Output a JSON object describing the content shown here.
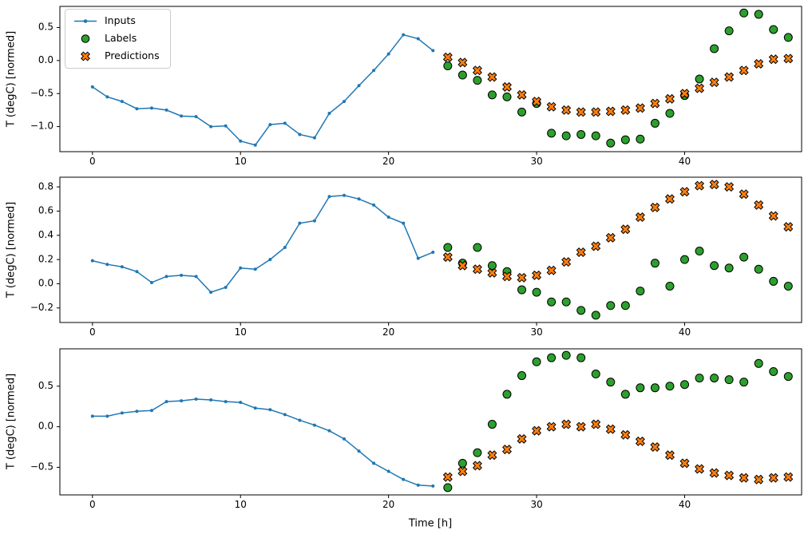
{
  "figure": {
    "background": "#ffffff",
    "xlabel": "Time [h]",
    "ylabel": "T (degC) [normed]",
    "legend": {
      "position": "upper-left",
      "entries": [
        {
          "label": "Inputs",
          "marker": "line-dot",
          "color": "#1f77b4"
        },
        {
          "label": "Labels",
          "marker": "circle",
          "color": "#2ca02c"
        },
        {
          "label": "Predictions",
          "marker": "X",
          "color": "#ff7f0e"
        }
      ]
    }
  },
  "chart_data": [
    {
      "type": "line+scatter",
      "subplot": 1,
      "ylabel": "T (degC) [normed]",
      "xlim": [
        -2.2,
        47.9
      ],
      "ylim": [
        -1.38,
        0.82
      ],
      "xticks": [
        0,
        10,
        20,
        30,
        40
      ],
      "yticks": [
        0.5,
        0.0,
        -0.5,
        -1.0
      ],
      "series": [
        {
          "name": "Inputs",
          "marker": "line-dot",
          "color": "#1f77b4",
          "x": [
            0,
            1,
            2,
            3,
            4,
            5,
            6,
            7,
            8,
            9,
            10,
            11,
            12,
            13,
            14,
            15,
            16,
            17,
            18,
            19,
            20,
            21,
            22,
            23
          ],
          "y": [
            -0.4,
            -0.55,
            -0.62,
            -0.73,
            -0.72,
            -0.75,
            -0.84,
            -0.85,
            -1.0,
            -0.99,
            -1.22,
            -1.28,
            -0.97,
            -0.95,
            -1.12,
            -1.17,
            -0.8,
            -0.62,
            -0.38,
            -0.15,
            0.1,
            0.39,
            0.33,
            0.15
          ]
        },
        {
          "name": "Labels",
          "marker": "circle",
          "color": "#2ca02c",
          "x": [
            24,
            25,
            26,
            27,
            28,
            29,
            30,
            31,
            32,
            33,
            34,
            35,
            36,
            37,
            38,
            39,
            40,
            41,
            42,
            43,
            44,
            45,
            46,
            47
          ],
          "y": [
            -0.08,
            -0.22,
            -0.3,
            -0.52,
            -0.55,
            -0.78,
            -0.65,
            -1.1,
            -1.14,
            -1.12,
            -1.14,
            -1.25,
            -1.2,
            -1.19,
            -0.95,
            -0.8,
            -0.53,
            -0.28,
            0.18,
            0.45,
            0.72,
            0.7,
            0.47,
            0.35
          ]
        },
        {
          "name": "Predictions",
          "marker": "X",
          "color": "#ff7f0e",
          "x": [
            24,
            25,
            26,
            27,
            28,
            29,
            30,
            31,
            32,
            33,
            34,
            35,
            36,
            37,
            38,
            39,
            40,
            41,
            42,
            43,
            44,
            45,
            46,
            47
          ],
          "y": [
            0.05,
            -0.03,
            -0.15,
            -0.25,
            -0.4,
            -0.52,
            -0.62,
            -0.7,
            -0.75,
            -0.78,
            -0.78,
            -0.77,
            -0.75,
            -0.72,
            -0.65,
            -0.58,
            -0.5,
            -0.42,
            -0.33,
            -0.25,
            -0.15,
            -0.05,
            0.02,
            0.03
          ]
        }
      ]
    },
    {
      "type": "line+scatter",
      "subplot": 2,
      "ylabel": "T (degC) [normed]",
      "xlim": [
        -2.2,
        47.9
      ],
      "ylim": [
        -0.32,
        0.88
      ],
      "xticks": [
        0,
        10,
        20,
        30,
        40
      ],
      "yticks": [
        0.8,
        0.6,
        0.4,
        0.2,
        0.0,
        -0.2
      ],
      "series": [
        {
          "name": "Inputs",
          "marker": "line-dot",
          "color": "#1f77b4",
          "x": [
            0,
            1,
            2,
            3,
            4,
            5,
            6,
            7,
            8,
            9,
            10,
            11,
            12,
            13,
            14,
            15,
            16,
            17,
            18,
            19,
            20,
            21,
            22,
            23
          ],
          "y": [
            0.19,
            0.16,
            0.14,
            0.1,
            0.01,
            0.06,
            0.07,
            0.06,
            -0.07,
            -0.03,
            0.13,
            0.12,
            0.2,
            0.3,
            0.5,
            0.52,
            0.72,
            0.73,
            0.7,
            0.65,
            0.55,
            0.5,
            0.21,
            0.26
          ]
        },
        {
          "name": "Labels",
          "marker": "circle",
          "color": "#2ca02c",
          "x": [
            24,
            25,
            26,
            27,
            28,
            29,
            30,
            31,
            32,
            33,
            34,
            35,
            36,
            37,
            38,
            39,
            40,
            41,
            42,
            43,
            44,
            45,
            46,
            47
          ],
          "y": [
            0.3,
            0.17,
            0.3,
            0.15,
            0.1,
            -0.05,
            -0.07,
            -0.15,
            -0.15,
            -0.22,
            -0.26,
            -0.18,
            -0.18,
            -0.06,
            0.17,
            -0.02,
            0.2,
            0.27,
            0.15,
            0.13,
            0.22,
            0.12,
            0.02,
            -0.02
          ]
        },
        {
          "name": "Predictions",
          "marker": "X",
          "color": "#ff7f0e",
          "x": [
            24,
            25,
            26,
            27,
            28,
            29,
            30,
            31,
            32,
            33,
            34,
            35,
            36,
            37,
            38,
            39,
            40,
            41,
            42,
            43,
            44,
            45,
            46,
            47
          ],
          "y": [
            0.22,
            0.15,
            0.12,
            0.09,
            0.06,
            0.05,
            0.07,
            0.11,
            0.18,
            0.26,
            0.31,
            0.38,
            0.45,
            0.55,
            0.63,
            0.7,
            0.76,
            0.81,
            0.82,
            0.8,
            0.74,
            0.65,
            0.56,
            0.47
          ]
        }
      ]
    },
    {
      "type": "line+scatter",
      "subplot": 3,
      "xlabel": "Time [h]",
      "ylabel": "T (degC) [normed]",
      "xlim": [
        -2.2,
        47.9
      ],
      "ylim": [
        -0.84,
        0.96
      ],
      "xticks": [
        0,
        10,
        20,
        30,
        40
      ],
      "yticks": [
        0.5,
        0.0,
        -0.5
      ],
      "series": [
        {
          "name": "Inputs",
          "marker": "line-dot",
          "color": "#1f77b4",
          "x": [
            0,
            1,
            2,
            3,
            4,
            5,
            6,
            7,
            8,
            9,
            10,
            11,
            12,
            13,
            14,
            15,
            16,
            17,
            18,
            19,
            20,
            21,
            22,
            23
          ],
          "y": [
            0.13,
            0.13,
            0.17,
            0.19,
            0.2,
            0.31,
            0.32,
            0.34,
            0.33,
            0.31,
            0.3,
            0.23,
            0.21,
            0.15,
            0.08,
            0.02,
            -0.05,
            -0.15,
            -0.3,
            -0.45,
            -0.55,
            -0.65,
            -0.72,
            -0.73
          ]
        },
        {
          "name": "Labels",
          "marker": "circle",
          "color": "#2ca02c",
          "x": [
            24,
            25,
            26,
            27,
            28,
            29,
            30,
            31,
            32,
            33,
            34,
            35,
            36,
            37,
            38,
            39,
            40,
            41,
            42,
            43,
            44,
            45,
            46,
            47
          ],
          "y": [
            -0.75,
            -0.45,
            -0.32,
            0.03,
            0.4,
            0.63,
            0.8,
            0.85,
            0.88,
            0.85,
            0.65,
            0.55,
            0.4,
            0.48,
            0.48,
            0.5,
            0.52,
            0.6,
            0.6,
            0.58,
            0.55,
            0.78,
            0.68,
            0.62
          ]
        },
        {
          "name": "Predictions",
          "marker": "X",
          "color": "#ff7f0e",
          "x": [
            24,
            25,
            26,
            27,
            28,
            29,
            30,
            31,
            32,
            33,
            34,
            35,
            36,
            37,
            38,
            39,
            40,
            41,
            42,
            43,
            44,
            45,
            46,
            47
          ],
          "y": [
            -0.62,
            -0.55,
            -0.48,
            -0.35,
            -0.28,
            -0.15,
            -0.05,
            0,
            0.03,
            0,
            0.03,
            -0.03,
            -0.1,
            -0.18,
            -0.25,
            -0.35,
            -0.45,
            -0.52,
            -0.57,
            -0.6,
            -0.63,
            -0.65,
            -0.63,
            -0.62
          ]
        }
      ]
    }
  ]
}
